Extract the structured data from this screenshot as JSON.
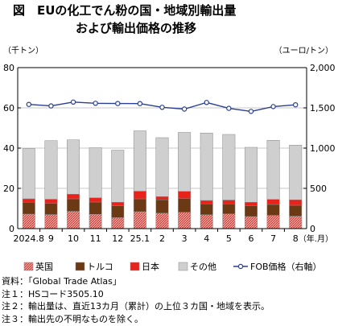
{
  "title": {
    "line1": "図　EUの化工でん粉の国・地域別輸出量",
    "line2": "および輸出価格の推移"
  },
  "notes": [
    "資料：「Global Trade Atlas」",
    "注１：HSコード3505.10",
    "注２：輸出量は、直近13カ月（累計）の上位３カ国・地域を表示。",
    "注３：輸出先の不明なものを除く。"
  ],
  "chart_data": {
    "type": "bar",
    "stacked": true,
    "categories": [
      "2024.8",
      "9",
      "10",
      "11",
      "12",
      "25.1",
      "2",
      "3",
      "4",
      "5",
      "6",
      "7",
      "8"
    ],
    "xlabel": "（年.月）",
    "ylabel": "（千トン）",
    "ylabel_right": "（ユーロ/トン）",
    "ylim": [
      0,
      80
    ],
    "ylim_right": [
      0,
      2000
    ],
    "yticks": [
      0,
      20,
      40,
      60,
      80
    ],
    "yticks_right_labels": [
      "0",
      "500",
      "1,000",
      "1,500",
      "2,000"
    ],
    "grid": true,
    "legend_position": "bottom",
    "series": [
      {
        "name": "英国",
        "color": "#e0605a",
        "pattern": "hatch",
        "values": [
          7.2,
          7.0,
          8.6,
          7.1,
          5.5,
          8.4,
          7.7,
          8.1,
          6.9,
          7.3,
          6.0,
          6.6,
          6.2
        ]
      },
      {
        "name": "トルコ",
        "color": "#6b3a14",
        "values": [
          5.9,
          5.5,
          6.2,
          6.1,
          5.9,
          6.4,
          6.6,
          6.8,
          5.4,
          5.0,
          5.3,
          5.4,
          5.4
        ]
      },
      {
        "name": "日本",
        "color": "#e8231b",
        "values": [
          1.7,
          2.1,
          2.3,
          2.1,
          1.7,
          3.8,
          1.6,
          3.6,
          1.7,
          1.9,
          1.8,
          2.5,
          2.7
        ]
      },
      {
        "name": "その他",
        "color": "#cfcfcf",
        "values": [
          24.9,
          29.1,
          27.0,
          24.9,
          25.9,
          30.0,
          29.3,
          29.3,
          33.5,
          32.6,
          27.3,
          29.4,
          27.2
        ]
      }
    ],
    "line_series": {
      "name": "FOB価格（右軸）",
      "axis": "right",
      "color": "#2a3f8f",
      "values": [
        1543,
        1524,
        1572,
        1557,
        1554,
        1553,
        1507,
        1485,
        1567,
        1494,
        1456,
        1516,
        1538
      ]
    }
  }
}
